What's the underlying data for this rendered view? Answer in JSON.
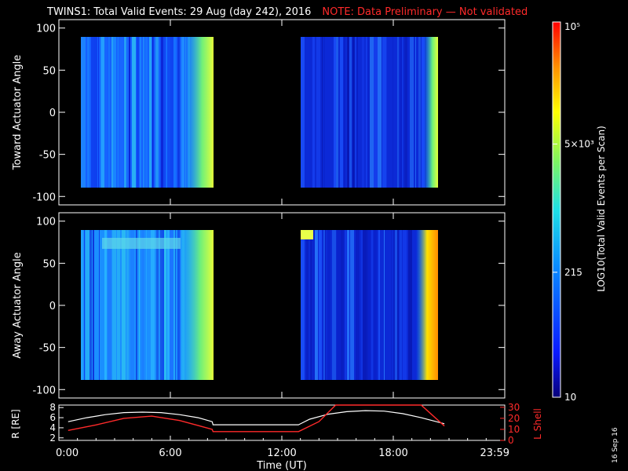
{
  "header": {
    "title": "TWINS1: Total Valid Events: 29 Aug (day 242), 2016",
    "note": "NOTE: Data Preliminary — Not validated"
  },
  "footer": {
    "stamp": "16 Sep 16"
  },
  "colors": {
    "bg": "#000000",
    "axes": "#ffffff",
    "accent_red": "#ff2a2a"
  },
  "chart_data": [
    {
      "type": "heatmap",
      "ylabel": "Toward Actuator Angle",
      "ylim": [
        -110,
        110
      ],
      "yticks": [
        "100",
        "50",
        "0",
        "-50",
        "-100"
      ],
      "xlim_hours": [
        0,
        24
      ],
      "data_blocks_hours": [
        [
          0.5,
          8.25
        ],
        [
          12.9,
          20.75
        ]
      ],
      "angle_range": [
        -88,
        90
      ]
    },
    {
      "type": "heatmap",
      "ylabel": "Away Actuator Angle",
      "ylim": [
        -110,
        110
      ],
      "yticks": [
        "100",
        "50",
        "0",
        "-50",
        "-100"
      ],
      "xlim_hours": [
        0,
        24
      ],
      "data_blocks_hours": [
        [
          0.5,
          8.25
        ],
        [
          12.9,
          20.75
        ]
      ],
      "angle_range": [
        -88,
        90
      ]
    },
    {
      "type": "line",
      "ylabel_left": "R [RE]",
      "ylabel_right": "L Shell",
      "yticks_left": [
        "8",
        "6",
        "4",
        "2"
      ],
      "yticks_right": [
        "30",
        "20",
        "10",
        "0"
      ],
      "ylim_left": [
        1.5,
        8.5
      ],
      "ylim_right": [
        0,
        32
      ],
      "xlabel": "Time (UT)",
      "xticks": [
        "0:00",
        "6:00",
        "12:00",
        "18:00",
        "23:59"
      ],
      "series": [
        {
          "axis": "left",
          "color": "#ffffff",
          "x": [
            0.5,
            1.5,
            2.5,
            3.5,
            4.5,
            5.5,
            6.5,
            7.5,
            8.25,
            8.3,
            12.9,
            13.5,
            14.5,
            15.5,
            16.5,
            17.5,
            18.5,
            19.5,
            20.75
          ],
          "y": [
            5.2,
            6.0,
            6.6,
            7.0,
            7.1,
            7.0,
            6.6,
            6.0,
            5.2,
            4.6,
            4.6,
            5.7,
            6.7,
            7.2,
            7.4,
            7.3,
            6.8,
            6.0,
            4.8
          ]
        },
        {
          "axis": "right",
          "x": [
            0.5,
            2.0,
            3.5,
            5.0,
            6.5,
            8.25,
            8.3,
            12.9,
            14.0,
            14.9,
            19.5,
            20.75
          ],
          "y": [
            9,
            14,
            20,
            22,
            18,
            10,
            8,
            8,
            17,
            32,
            32,
            13
          ]
        }
      ]
    }
  ],
  "colorbar": {
    "title": "LOG10(Total Valid Events per Scan)",
    "ticks": [
      "10⁵",
      "5×10³",
      "215",
      "10"
    ],
    "log_range": [
      1,
      5
    ],
    "tick_values_log": [
      5,
      3.699,
      2.332,
      1
    ]
  }
}
